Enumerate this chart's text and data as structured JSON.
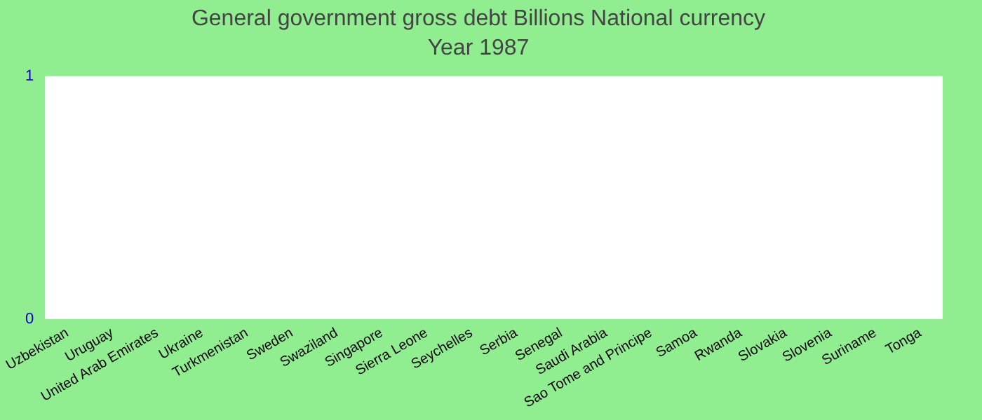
{
  "chart_data": {
    "type": "bar",
    "title": "General government gross debt Billions National currency",
    "subtitle": "Year 1987",
    "categories": [
      "Uzbekistan",
      "Uruguay",
      "United Arab Emirates",
      "Ukraine",
      "Turkmenistan",
      "Sweden",
      "Swaziland",
      "Singapore",
      "Sierra Leone",
      "Seychelles",
      "Serbia",
      "Senegal",
      "Saudi Arabia",
      "Sao Tome and Principe",
      "Samoa",
      "Rwanda",
      "Slovakia",
      "Slovenia",
      "Suriname",
      "Tonga"
    ],
    "values": [
      0,
      0,
      0,
      0,
      0,
      0,
      0,
      0,
      0,
      0,
      0,
      0,
      0,
      0,
      0,
      0,
      0,
      0,
      0,
      0
    ],
    "ylim": [
      0,
      1
    ],
    "yticks": [
      0,
      1
    ],
    "grid": false
  }
}
